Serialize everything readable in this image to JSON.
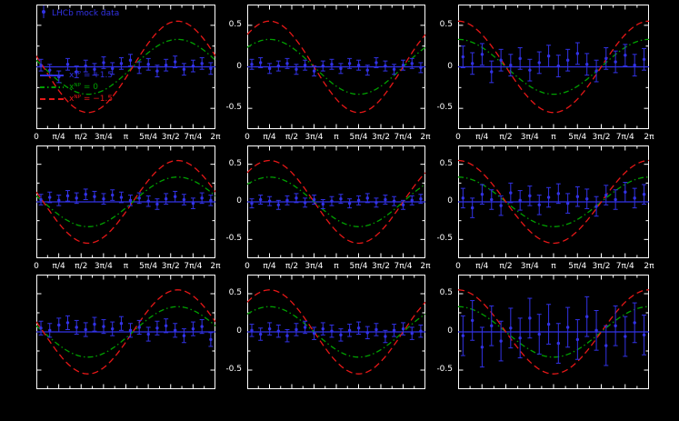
{
  "figure": {
    "background": "#000000",
    "frame_color": "#ffffff",
    "tick_label_color": "#ffffff"
  },
  "chart_data": {
    "type": "line",
    "title": "",
    "description": "3x3 grid of asymmetry-vs-angle panels: sinusoidal model curves for three new-physics parameter values overlaid on LHCb mock data points with error bars; each column has its own phase, y axis from -0.5 to 0.5, x axis from 0 to 2pi",
    "x_ticks": [
      "0",
      "π/4",
      "π/2",
      "3π/4",
      "π",
      "5π/4",
      "3π/2",
      "7π/4",
      "2π"
    ],
    "y_ticks": [
      "0.5",
      "0",
      "-0.5"
    ],
    "y_tick_values": [
      0.5,
      0,
      -0.5
    ],
    "xlim": [
      0,
      6.2832
    ],
    "ylim": [
      -0.75,
      0.75
    ],
    "legend": {
      "data_label": "LHCb mock data",
      "data_color": "#3232e6"
    },
    "series": [
      {
        "name": "xᴺᴾ = +1.5",
        "color": "#3232e6",
        "style": "solid",
        "amplitude": 0.0
      },
      {
        "name": "xᴺᴾ = 0",
        "color": "#00a000",
        "style": "dashdot",
        "amplitude": 0.33
      },
      {
        "name": "xᴺᴾ = −1.5",
        "color": "#e61717",
        "style": "dashed",
        "amplitude": 0.55
      }
    ],
    "columns": [
      {
        "phase": 2.9
      },
      {
        "phase": 0.785
      },
      {
        "phase": 1.5708
      }
    ],
    "points_x": [
      0.16,
      0.47,
      0.79,
      1.1,
      1.41,
      1.73,
      2.04,
      2.36,
      2.67,
      2.98,
      3.3,
      3.61,
      3.93,
      4.24,
      4.55,
      4.87,
      5.18,
      5.5,
      5.81,
      6.12
    ],
    "panels": [
      {
        "row": 0,
        "col": 0,
        "ey": 0.07,
        "y": [
          0.02,
          -0.04,
          -0.12,
          0.03,
          -0.06,
          0.01,
          -0.03,
          0.05,
          -0.02,
          0.04,
          0.08,
          -0.01,
          0.03,
          -0.05,
          0.02,
          0.06,
          -0.03,
          0.01,
          0.04,
          -0.02
        ]
      },
      {
        "row": 0,
        "col": 1,
        "ey": 0.06,
        "y": [
          0.03,
          0.05,
          -0.02,
          0.01,
          0.04,
          -0.03,
          0.02,
          -0.05,
          0.01,
          0.03,
          -0.02,
          0.04,
          0.02,
          -0.04,
          0.05,
          0.01,
          -0.03,
          0.02,
          0.04,
          -0.01
        ]
      },
      {
        "row": 0,
        "col": 2,
        "ey": 0.13,
        "y": [
          0.12,
          0.04,
          0.15,
          -0.06,
          0.08,
          0.02,
          0.1,
          -0.04,
          0.05,
          0.13,
          0.01,
          0.08,
          0.16,
          0.03,
          -0.05,
          0.1,
          0.06,
          0.14,
          0.02,
          0.09
        ]
      },
      {
        "row": 1,
        "col": 0,
        "ey": 0.07,
        "y": [
          0.03,
          0.06,
          0.02,
          0.08,
          0.05,
          0.1,
          0.07,
          0.04,
          0.09,
          0.06,
          0.02,
          0.05,
          0.01,
          -0.03,
          0.04,
          0.07,
          0.03,
          -0.02,
          0.05,
          0.02
        ]
      },
      {
        "row": 1,
        "col": 1,
        "ey": 0.06,
        "y": [
          -0.02,
          0.03,
          0.01,
          -0.04,
          0.02,
          0.05,
          -0.01,
          0.03,
          -0.03,
          0.01,
          0.04,
          -0.02,
          0.02,
          0.05,
          -0.01,
          0.03,
          0.01,
          -0.04,
          0.02,
          0.04
        ]
      },
      {
        "row": 1,
        "col": 2,
        "ey": 0.13,
        "y": [
          0.05,
          -0.08,
          0.1,
          0.03,
          -0.05,
          0.12,
          0.02,
          0.08,
          -0.04,
          0.06,
          0.11,
          -0.02,
          0.07,
          0.04,
          -0.06,
          0.09,
          0.03,
          0.13,
          0.05,
          0.1
        ]
      },
      {
        "row": 2,
        "col": 0,
        "ey": 0.09,
        "y": [
          0.05,
          0.02,
          0.09,
          0.12,
          0.06,
          0.03,
          0.1,
          0.07,
          0.04,
          0.11,
          0.02,
          0.06,
          -0.03,
          0.05,
          0.08,
          0.02,
          -0.05,
          0.04,
          0.07,
          -0.1
        ]
      },
      {
        "row": 2,
        "col": 1,
        "ey": 0.08,
        "y": [
          0.02,
          -0.03,
          0.04,
          0.01,
          -0.05,
          0.03,
          0.06,
          -0.02,
          0.04,
          0.01,
          -0.04,
          0.02,
          0.05,
          -0.01,
          0.03,
          -0.06,
          0.02,
          0.04,
          -0.02,
          0.01
        ]
      },
      {
        "row": 2,
        "col": 2,
        "ey": 0.26,
        "y": [
          -0.05,
          0.15,
          -0.2,
          0.08,
          -0.12,
          0.05,
          -0.08,
          0.18,
          -0.03,
          0.1,
          -0.15,
          0.06,
          -0.1,
          0.2,
          0.02,
          -0.18,
          0.08,
          -0.06,
          0.12,
          -0.04
        ]
      }
    ]
  }
}
